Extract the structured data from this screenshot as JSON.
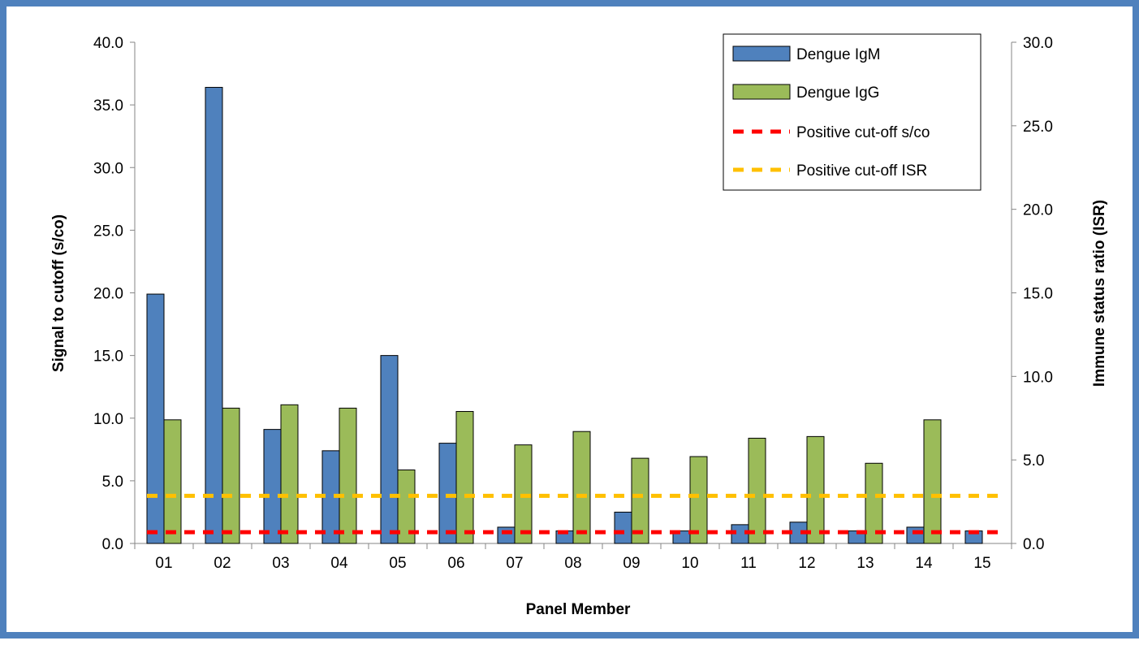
{
  "chart_data": {
    "type": "bar",
    "categories": [
      "01",
      "02",
      "03",
      "04",
      "05",
      "06",
      "07",
      "08",
      "09",
      "10",
      "11",
      "12",
      "13",
      "14",
      "15"
    ],
    "series": [
      {
        "name": "Dengue IgM",
        "axis": "left",
        "values": [
          19.9,
          36.4,
          9.1,
          7.4,
          15.0,
          8.0,
          1.3,
          1.0,
          2.5,
          1.0,
          1.5,
          1.7,
          1.0,
          1.3,
          1.0
        ],
        "color": "#4f81bd"
      },
      {
        "name": "Dengue IgG",
        "axis": "right",
        "values": [
          7.4,
          8.1,
          8.3,
          8.1,
          4.4,
          7.9,
          5.9,
          6.7,
          5.1,
          5.2,
          6.3,
          6.4,
          4.8,
          7.4,
          0.0
        ],
        "color": "#9bbb59"
      }
    ],
    "reference_lines": [
      {
        "name": "Positive cut-off s/co",
        "axis": "left",
        "value": 0.9,
        "color": "#ff0000"
      },
      {
        "name": "Positive cut-off ISR",
        "axis": "left",
        "value": 3.8,
        "color": "#ffc000"
      }
    ],
    "xlabel": "Panel Member",
    "ylabel": "Signal to cutoff (s/co)",
    "y2label": "Immune status ratio (ISR)",
    "ylim": [
      0,
      40
    ],
    "y2lim": [
      0,
      30
    ],
    "yticks": [
      "0.0",
      "5.0",
      "10.0",
      "15.0",
      "20.0",
      "25.0",
      "30.0",
      "35.0",
      "40.0"
    ],
    "y2ticks": [
      "0.0",
      "5.0",
      "10.0",
      "15.0",
      "20.0",
      "25.0",
      "30.0"
    ],
    "legend_position": "top-right",
    "grid": false
  }
}
